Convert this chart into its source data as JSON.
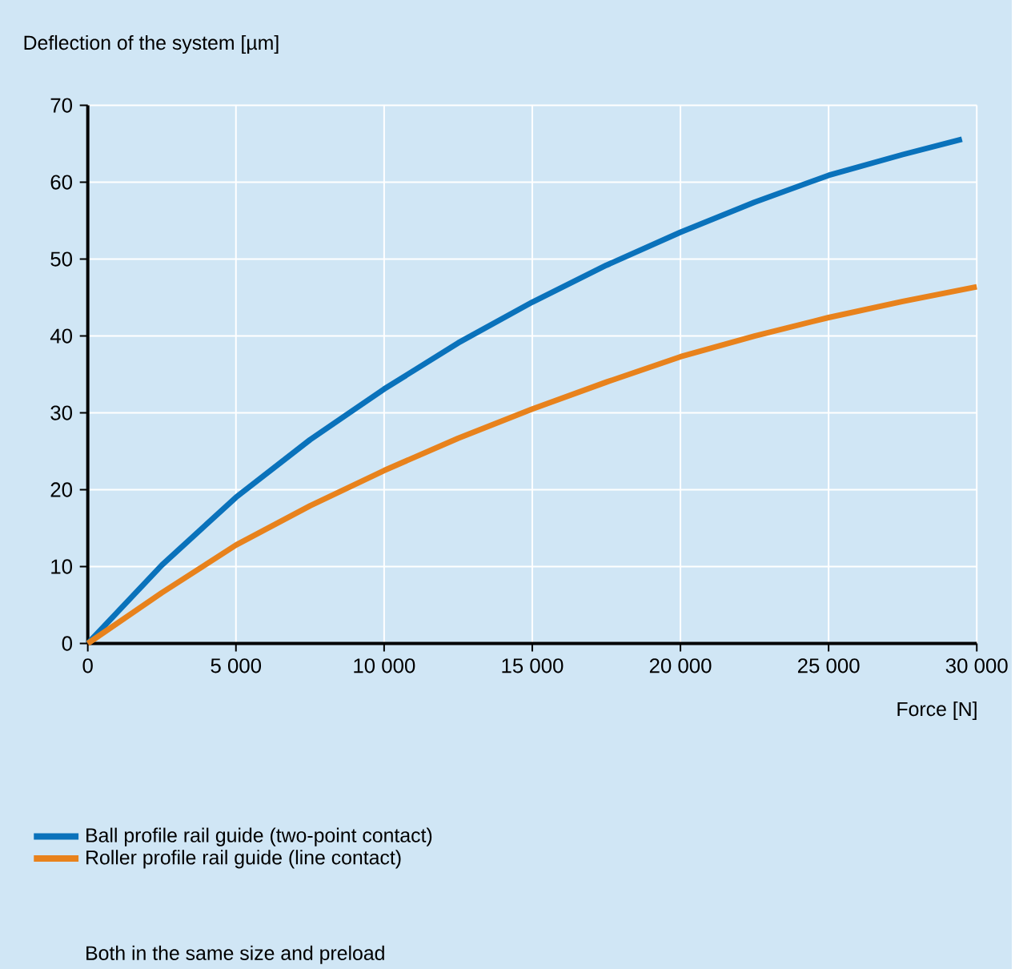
{
  "chart_data": {
    "type": "line",
    "xlabel": "Force [N]",
    "ylabel": "Deflection of the system [µm]",
    "xlim": [
      0,
      30000
    ],
    "ylim": [
      0,
      70
    ],
    "xticks": [
      {
        "value": 0,
        "label": "0"
      },
      {
        "value": 5000,
        "label": "5 000"
      },
      {
        "value": 10000,
        "label": "10 000"
      },
      {
        "value": 15000,
        "label": "15 000"
      },
      {
        "value": 20000,
        "label": "20 000"
      },
      {
        "value": 25000,
        "label": "25 000"
      },
      {
        "value": 30000,
        "label": "30 000"
      }
    ],
    "yticks": [
      0,
      10,
      20,
      30,
      40,
      50,
      60,
      70
    ],
    "grid": true,
    "legend": "bottom",
    "marker": "none",
    "line_style": "solid",
    "series": [
      {
        "name": "Ball profile rail guide (two-point contact)",
        "color": "#0a72bb",
        "x": [
          0,
          2500,
          5000,
          7500,
          10000,
          12500,
          15000,
          17500,
          20000,
          22500,
          25000,
          27500,
          29500
        ],
        "values": [
          0,
          10.2,
          19.0,
          26.5,
          33.1,
          39.1,
          44.4,
          49.2,
          53.5,
          57.4,
          60.9,
          63.6,
          65.6
        ]
      },
      {
        "name": "Roller profile rail guide (line contact)",
        "color": "#e8821c",
        "x": [
          0,
          2500,
          5000,
          7500,
          10000,
          12500,
          15000,
          17500,
          20000,
          22500,
          25000,
          27500,
          30000
        ],
        "values": [
          0,
          6.6,
          12.8,
          17.9,
          22.5,
          26.7,
          30.5,
          34.0,
          37.3,
          40.0,
          42.4,
          44.5,
          46.4
        ]
      }
    ],
    "annotations": [
      "Both in the same size and preload"
    ]
  }
}
